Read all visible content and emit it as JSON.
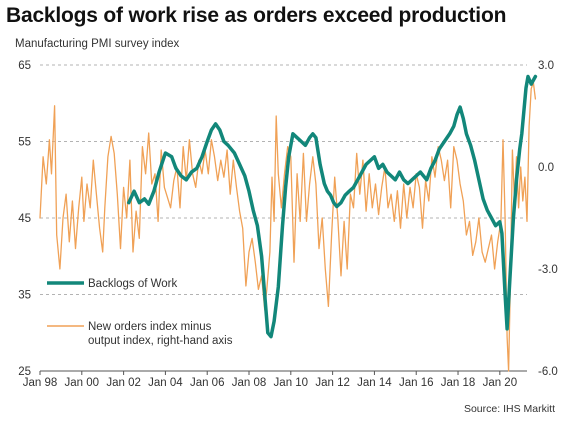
{
  "title": "Backlogs of work rise as orders exceed production",
  "subtitle": "Manufacturing PMI survey index",
  "source": "Source: IHS Markitt",
  "chart_data": {
    "type": "line",
    "x_tick_labels": [
      "Jan 98",
      "Jan 00",
      "Jan 02",
      "Jan 04",
      "Jan 06",
      "Jan 08",
      "Jan 10",
      "Jan 12",
      "Jan 14",
      "Jan 16",
      "Jan 18",
      "Jan 20"
    ],
    "x_range": [
      1998.0,
      2021.3
    ],
    "y_left": {
      "ticks": [
        "25",
        "35",
        "45",
        "55",
        "65"
      ],
      "range": [
        25,
        65
      ]
    },
    "y_right": {
      "ticks": [
        "-6.0",
        "-3.0",
        "0.0",
        "3.0"
      ],
      "range": [
        -6.0,
        3.0
      ]
    },
    "grid": "horizontal-dashed",
    "legend_position": "left-middle",
    "colors": {
      "backlogs": "#12877a",
      "orders_minus_output": "#f0a156"
    },
    "series": [
      {
        "name": "Backlogs of Work",
        "axis": "left",
        "data": [
          [
            2002.25,
            47
          ],
          [
            2002.5,
            48.5
          ],
          [
            2002.75,
            47
          ],
          [
            2003.0,
            47.5
          ],
          [
            2003.2,
            46.8
          ],
          [
            2003.45,
            48.5
          ],
          [
            2003.7,
            51
          ],
          [
            2004.0,
            53.5
          ],
          [
            2004.3,
            53
          ],
          [
            2004.5,
            51.5
          ],
          [
            2004.75,
            50.5
          ],
          [
            2005.0,
            50
          ],
          [
            2005.25,
            51
          ],
          [
            2005.5,
            51.5
          ],
          [
            2005.75,
            53
          ],
          [
            2006.0,
            55
          ],
          [
            2006.2,
            56.5
          ],
          [
            2006.4,
            57.3
          ],
          [
            2006.6,
            56.5
          ],
          [
            2006.8,
            55
          ],
          [
            2007.0,
            54.5
          ],
          [
            2007.3,
            53.5
          ],
          [
            2007.55,
            52
          ],
          [
            2007.8,
            50.5
          ],
          [
            2008.0,
            48.5
          ],
          [
            2008.2,
            46
          ],
          [
            2008.4,
            44
          ],
          [
            2008.6,
            40
          ],
          [
            2008.75,
            35
          ],
          [
            2008.9,
            30
          ],
          [
            2009.05,
            29.5
          ],
          [
            2009.2,
            31.5
          ],
          [
            2009.4,
            36
          ],
          [
            2009.6,
            44
          ],
          [
            2009.75,
            49
          ],
          [
            2009.9,
            53
          ],
          [
            2010.1,
            56
          ],
          [
            2010.3,
            55.5
          ],
          [
            2010.5,
            55
          ],
          [
            2010.7,
            54.5
          ],
          [
            2010.9,
            55.5
          ],
          [
            2011.05,
            56
          ],
          [
            2011.2,
            55.5
          ],
          [
            2011.4,
            52
          ],
          [
            2011.6,
            49.5
          ],
          [
            2011.75,
            48.5
          ],
          [
            2011.9,
            48
          ],
          [
            2012.05,
            47
          ],
          [
            2012.2,
            46.5
          ],
          [
            2012.4,
            47
          ],
          [
            2012.6,
            48
          ],
          [
            2012.8,
            48.5
          ],
          [
            2013.0,
            49
          ],
          [
            2013.2,
            50
          ],
          [
            2013.4,
            51
          ],
          [
            2013.6,
            52
          ],
          [
            2013.8,
            52.5
          ],
          [
            2014.0,
            53
          ],
          [
            2014.2,
            51.5
          ],
          [
            2014.4,
            52
          ],
          [
            2014.6,
            51
          ],
          [
            2014.8,
            50.5
          ],
          [
            2015.0,
            50
          ],
          [
            2015.2,
            51
          ],
          [
            2015.4,
            50
          ],
          [
            2015.6,
            49.5
          ],
          [
            2015.8,
            50
          ],
          [
            2016.0,
            50.5
          ],
          [
            2016.2,
            51
          ],
          [
            2016.5,
            50
          ],
          [
            2016.7,
            51.5
          ],
          [
            2016.9,
            52.5
          ],
          [
            2017.1,
            54
          ],
          [
            2017.35,
            55
          ],
          [
            2017.6,
            56
          ],
          [
            2017.8,
            57
          ],
          [
            2017.95,
            58.5
          ],
          [
            2018.1,
            59.5
          ],
          [
            2018.25,
            58
          ],
          [
            2018.4,
            56
          ],
          [
            2018.6,
            54.5
          ],
          [
            2018.8,
            52.5
          ],
          [
            2019.0,
            50
          ],
          [
            2019.2,
            47.5
          ],
          [
            2019.4,
            46
          ],
          [
            2019.6,
            45
          ],
          [
            2019.8,
            44
          ],
          [
            2020.0,
            44.5
          ],
          [
            2020.1,
            43
          ],
          [
            2020.25,
            35
          ],
          [
            2020.35,
            30.5
          ],
          [
            2020.5,
            38
          ],
          [
            2020.65,
            45
          ],
          [
            2020.8,
            50
          ],
          [
            2020.95,
            54
          ],
          [
            2021.05,
            56
          ],
          [
            2021.15,
            59
          ],
          [
            2021.25,
            62
          ],
          [
            2021.35,
            63.5
          ],
          [
            2021.5,
            62.5
          ],
          [
            2021.7,
            63.5
          ]
        ]
      },
      {
        "name": "New orders index minus output index, right-hand axis",
        "axis": "right",
        "data": [
          [
            1998.0,
            -1.5
          ],
          [
            1998.15,
            0.3
          ],
          [
            1998.3,
            -0.5
          ],
          [
            1998.45,
            0.8
          ],
          [
            1998.55,
            -0.2
          ],
          [
            1998.7,
            1.8
          ],
          [
            1998.8,
            -2.0
          ],
          [
            1998.95,
            -3.0
          ],
          [
            1999.1,
            -1.5
          ],
          [
            1999.25,
            -0.8
          ],
          [
            1999.4,
            -2.2
          ],
          [
            1999.55,
            -1.0
          ],
          [
            1999.7,
            -2.4
          ],
          [
            1999.85,
            -1.2
          ],
          [
            2000.0,
            -0.3
          ],
          [
            2000.1,
            -1.6
          ],
          [
            2000.25,
            -0.5
          ],
          [
            2000.4,
            -1.2
          ],
          [
            2000.55,
            0.2
          ],
          [
            2000.7,
            -0.8
          ],
          [
            2000.85,
            -1.8
          ],
          [
            2001.0,
            -2.5
          ],
          [
            2001.1,
            -1.2
          ],
          [
            2001.25,
            0.3
          ],
          [
            2001.4,
            0.9
          ],
          [
            2001.55,
            0.4
          ],
          [
            2001.7,
            -0.8
          ],
          [
            2001.85,
            -2.4
          ],
          [
            2002.0,
            -0.6
          ],
          [
            2002.15,
            -1.5
          ],
          [
            2002.3,
            0.2
          ],
          [
            2002.45,
            -2.5
          ],
          [
            2002.6,
            -1.3
          ],
          [
            2002.75,
            -2.1
          ],
          [
            2002.9,
            0.6
          ],
          [
            2003.05,
            -0.2
          ],
          [
            2003.2,
            1.0
          ],
          [
            2003.35,
            -0.5
          ],
          [
            2003.5,
            -0.2
          ],
          [
            2003.65,
            -1.6
          ],
          [
            2003.8,
            0.5
          ],
          [
            2003.95,
            -0.6
          ],
          [
            2004.1,
            -0.9
          ],
          [
            2004.25,
            -1.2
          ],
          [
            2004.4,
            -0.4
          ],
          [
            2004.55,
            0.0
          ],
          [
            2004.7,
            -1.2
          ],
          [
            2004.85,
            0.6
          ],
          [
            2005.0,
            -0.4
          ],
          [
            2005.15,
            0.8
          ],
          [
            2005.3,
            -0.2
          ],
          [
            2005.45,
            -0.6
          ],
          [
            2005.6,
            0.2
          ],
          [
            2005.75,
            -0.2
          ],
          [
            2005.9,
            0.5
          ],
          [
            2006.05,
            -0.2
          ],
          [
            2006.2,
            0.8
          ],
          [
            2006.35,
            0.3
          ],
          [
            2006.5,
            -0.4
          ],
          [
            2006.65,
            0.2
          ],
          [
            2006.8,
            -0.3
          ],
          [
            2006.95,
            0.5
          ],
          [
            2007.1,
            -0.8
          ],
          [
            2007.25,
            0.2
          ],
          [
            2007.4,
            -0.6
          ],
          [
            2007.55,
            -1.3
          ],
          [
            2007.7,
            -1.8
          ],
          [
            2007.85,
            -3.5
          ],
          [
            2008.0,
            -2.5
          ],
          [
            2008.15,
            -2.1
          ],
          [
            2008.3,
            -2.8
          ],
          [
            2008.45,
            -3.6
          ],
          [
            2008.6,
            -3.2
          ],
          [
            2008.75,
            -4.2
          ],
          [
            2008.85,
            -3.6
          ],
          [
            2009.0,
            -2.5
          ],
          [
            2009.1,
            -0.3
          ],
          [
            2009.2,
            -1.6
          ],
          [
            2009.3,
            1.5
          ],
          [
            2009.4,
            -0.2
          ],
          [
            2009.55,
            -1.2
          ],
          [
            2009.7,
            -0.2
          ],
          [
            2009.85,
            0.6
          ],
          [
            2010.0,
            0.3
          ],
          [
            2010.15,
            -2.8
          ],
          [
            2010.3,
            -0.2
          ],
          [
            2010.45,
            -1.6
          ],
          [
            2010.6,
            0.4
          ],
          [
            2010.75,
            -1.6
          ],
          [
            2010.9,
            -0.5
          ],
          [
            2011.05,
            0.3
          ],
          [
            2011.2,
            -0.5
          ],
          [
            2011.35,
            -2.4
          ],
          [
            2011.5,
            -1.5
          ],
          [
            2011.65,
            -3.0
          ],
          [
            2011.8,
            -4.1
          ],
          [
            2011.95,
            -2.0
          ],
          [
            2012.1,
            -0.3
          ],
          [
            2012.25,
            -1.5
          ],
          [
            2012.4,
            -3.2
          ],
          [
            2012.55,
            -1.6
          ],
          [
            2012.7,
            -3.0
          ],
          [
            2012.85,
            -0.8
          ],
          [
            2013.0,
            -1.2
          ],
          [
            2013.15,
            0.4
          ],
          [
            2013.3,
            -0.8
          ],
          [
            2013.45,
            0.2
          ],
          [
            2013.6,
            -1.3
          ],
          [
            2013.75,
            -0.2
          ],
          [
            2013.9,
            -1.2
          ],
          [
            2014.05,
            -0.5
          ],
          [
            2014.2,
            -1.4
          ],
          [
            2014.35,
            -0.6
          ],
          [
            2014.5,
            0.0
          ],
          [
            2014.65,
            -1.2
          ],
          [
            2014.8,
            -0.8
          ],
          [
            2014.95,
            -1.6
          ],
          [
            2015.1,
            -0.7
          ],
          [
            2015.25,
            -1.8
          ],
          [
            2015.4,
            -0.5
          ],
          [
            2015.55,
            -1.5
          ],
          [
            2015.7,
            -0.6
          ],
          [
            2015.85,
            -1.2
          ],
          [
            2016.0,
            -0.2
          ],
          [
            2016.15,
            -0.6
          ],
          [
            2016.3,
            -1.8
          ],
          [
            2016.45,
            -0.4
          ],
          [
            2016.6,
            -1.0
          ],
          [
            2016.75,
            0.3
          ],
          [
            2016.9,
            -0.3
          ],
          [
            2017.05,
            0.6
          ],
          [
            2017.2,
            0.2
          ],
          [
            2017.35,
            -0.4
          ],
          [
            2017.5,
            0.2
          ],
          [
            2017.65,
            -1.2
          ],
          [
            2017.8,
            0.6
          ],
          [
            2017.95,
            0.2
          ],
          [
            2018.1,
            -0.5
          ],
          [
            2018.25,
            -1.0
          ],
          [
            2018.4,
            -2.0
          ],
          [
            2018.55,
            -1.6
          ],
          [
            2018.7,
            -2.6
          ],
          [
            2018.85,
            -2.2
          ],
          [
            2019.0,
            -1.5
          ],
          [
            2019.15,
            -2.5
          ],
          [
            2019.3,
            -2.8
          ],
          [
            2019.45,
            -2.4
          ],
          [
            2019.6,
            -2.0
          ],
          [
            2019.75,
            -3.0
          ],
          [
            2019.9,
            -2.2
          ],
          [
            2020.05,
            -1.6
          ],
          [
            2020.15,
            0.8
          ],
          [
            2020.25,
            -1.5
          ],
          [
            2020.35,
            -5.0
          ],
          [
            2020.42,
            -6.0
          ],
          [
            2020.5,
            -3.5
          ],
          [
            2020.6,
            0.5
          ],
          [
            2020.7,
            -1.0
          ],
          [
            2020.8,
            0.3
          ],
          [
            2020.9,
            -1.2
          ],
          [
            2021.0,
            0.0
          ],
          [
            2021.1,
            -1.0
          ],
          [
            2021.2,
            -0.3
          ],
          [
            2021.3,
            -1.6
          ],
          [
            2021.4,
            1.2
          ],
          [
            2021.5,
            2.3
          ],
          [
            2021.6,
            2.5
          ],
          [
            2021.7,
            2.0
          ]
        ]
      }
    ]
  }
}
